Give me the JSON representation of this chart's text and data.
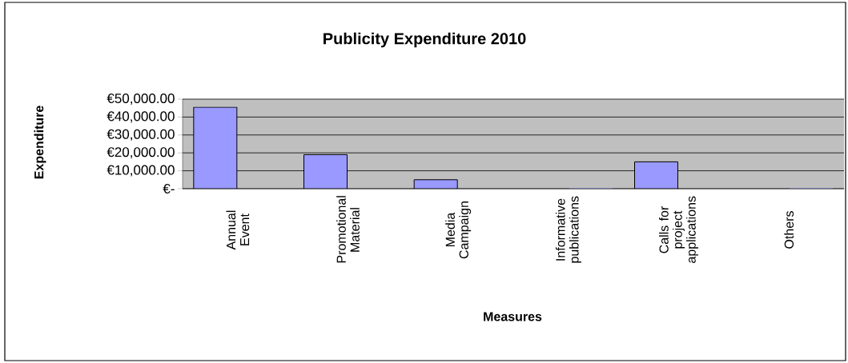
{
  "chart_data": {
    "type": "bar",
    "title": "Publicity Expenditure 2010",
    "xlabel": "Measures",
    "ylabel": "Expenditure",
    "categories": [
      "Annual Event",
      "Promotional Material",
      "Media Campaign",
      "Informative publications",
      "Calls for project applications",
      "Others"
    ],
    "values": [
      45500,
      19000,
      5000,
      0,
      15000,
      0
    ],
    "color": "#9999ff",
    "ylim": [
      0,
      50000
    ],
    "yticks": [
      {
        "value": 0,
        "label": "€-"
      },
      {
        "value": 10000,
        "label": "€10,000.00"
      },
      {
        "value": 20000,
        "label": "€20,000.00"
      },
      {
        "value": 30000,
        "label": "€30,000.00"
      },
      {
        "value": 40000,
        "label": "€40,000.00"
      },
      {
        "value": 50000,
        "label": "€50,000.00"
      }
    ],
    "grid": "y"
  }
}
